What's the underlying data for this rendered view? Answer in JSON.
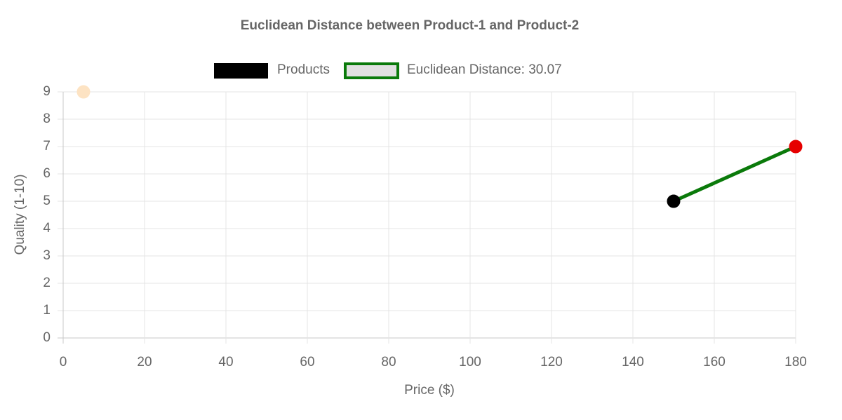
{
  "chart_data": {
    "type": "scatter",
    "title": "Euclidean Distance between Product-1 and Product-2",
    "x_label": "Price ($)",
    "y_label": "Quality (1-10)",
    "xlim": [
      0,
      180
    ],
    "xticks": [
      0,
      20,
      40,
      60,
      80,
      100,
      120,
      140,
      160,
      180
    ],
    "ylim": [
      0,
      9
    ],
    "yticks": [
      0,
      1,
      2,
      3,
      4,
      5,
      6,
      7,
      8,
      9
    ],
    "grid": true,
    "legend": "top",
    "series": [
      {
        "name": "Products",
        "type": "scatter",
        "color": "#000000",
        "point_colors": [
          "#000000",
          "#e60000",
          "#fde3c3"
        ],
        "x": [
          150,
          180,
          5
        ],
        "values": [
          5,
          7,
          9
        ]
      },
      {
        "name": "Euclidean Distance: 30.07",
        "type": "line",
        "color": "#0a7a0a",
        "fill": "#e0e0e0",
        "x": [
          150,
          180
        ],
        "values": [
          5,
          7
        ]
      }
    ]
  }
}
